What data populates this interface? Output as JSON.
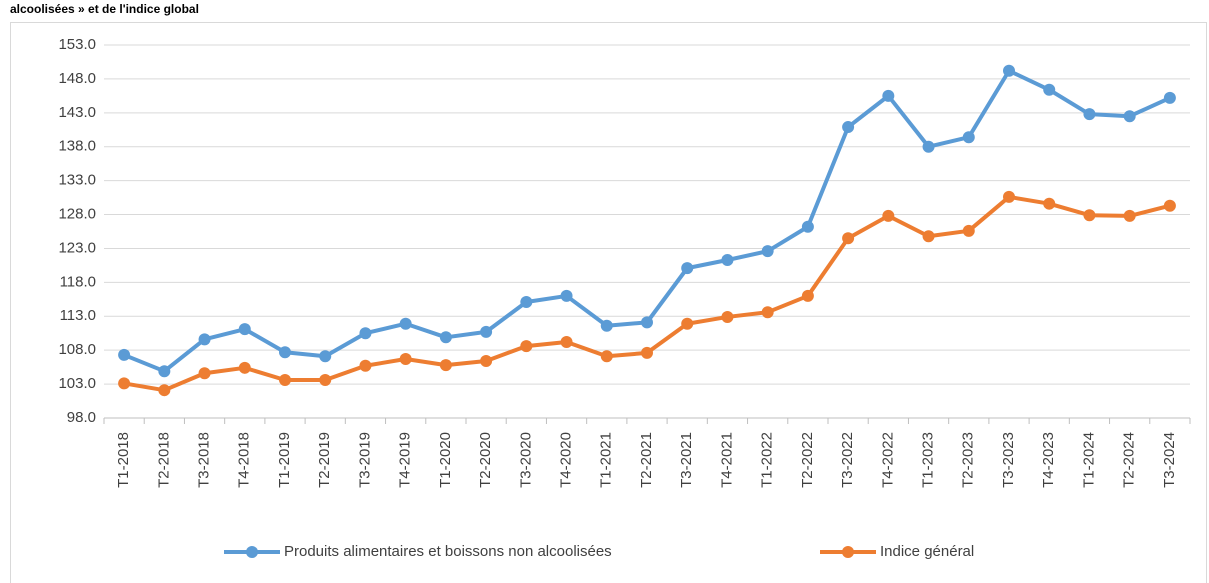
{
  "chart_data": {
    "type": "line",
    "title": "alcoolisées » et de l'indice global",
    "categories": [
      "T1-2018",
      "T2-2018",
      "T3-2018",
      "T4-2018",
      "T1-2019",
      "T2-2019",
      "T3-2019",
      "T4-2019",
      "T1-2020",
      "T2-2020",
      "T3-2020",
      "T4-2020",
      "T1-2021",
      "T2-2021",
      "T3-2021",
      "T4-2021",
      "T1-2022",
      "T2-2022",
      "T3-2022",
      "T4-2022",
      "T1-2023",
      "T2-2023",
      "T3-2023",
      "T4-2023",
      "T1-2024",
      "T2-2024",
      "T3-2024"
    ],
    "series": [
      {
        "name": "Produits alimentaires et boissons non alcoolisées",
        "color": "#5b9bd5",
        "values": [
          107.3,
          104.9,
          109.6,
          111.1,
          107.7,
          107.1,
          110.5,
          111.9,
          109.9,
          110.7,
          115.1,
          116.0,
          111.6,
          112.1,
          120.1,
          121.3,
          122.6,
          126.2,
          140.9,
          145.5,
          138.0,
          139.4,
          149.2,
          146.4,
          142.8,
          142.5,
          145.2
        ]
      },
      {
        "name": "Indice général",
        "color": "#ed7d31",
        "values": [
          103.1,
          102.1,
          104.6,
          105.4,
          103.6,
          103.6,
          105.7,
          106.7,
          105.8,
          106.4,
          108.6,
          109.2,
          107.1,
          107.6,
          111.9,
          112.9,
          113.6,
          116.0,
          124.5,
          127.8,
          124.8,
          125.6,
          130.6,
          129.6,
          127.9,
          127.8,
          129.3
        ]
      }
    ],
    "ylim": [
      98,
      153
    ],
    "yticks": [
      {
        "value": 98,
        "label": "98.0"
      },
      {
        "value": 103,
        "label": "103.0"
      },
      {
        "value": 108,
        "label": "108.0"
      },
      {
        "value": 113,
        "label": "113.0"
      },
      {
        "value": 118,
        "label": "118.0"
      },
      {
        "value": 123,
        "label": "123.0"
      },
      {
        "value": 128,
        "label": "128.0"
      },
      {
        "value": 133,
        "label": "133.0"
      },
      {
        "value": 138,
        "label": "138.0"
      },
      {
        "value": 143,
        "label": "143.0"
      },
      {
        "value": 148,
        "label": "148.0"
      },
      {
        "value": 153,
        "label": "153.0"
      }
    ],
    "grid": true,
    "legend": "bottom"
  }
}
